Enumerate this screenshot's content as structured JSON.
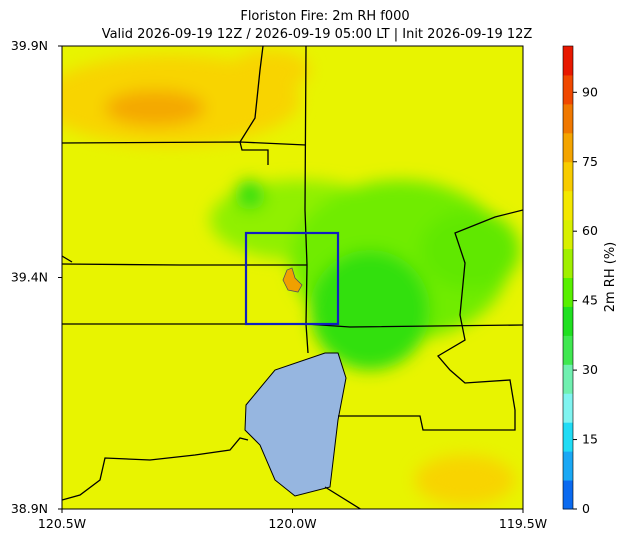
{
  "title": "Floriston Fire: 2m RH f000",
  "subtitle": "Valid 2026-09-19 12Z / 2026-09-19 05:00 LT | Init 2026-09-19 12Z",
  "map": {
    "xlim": [
      -120.5,
      -119.5
    ],
    "ylim": [
      38.9,
      39.9
    ],
    "xticks": [
      {
        "value": -120.5,
        "label": "120.5W"
      },
      {
        "value": -120.0,
        "label": "120.0W"
      },
      {
        "value": -119.5,
        "label": "119.5W"
      }
    ],
    "yticks": [
      {
        "value": 38.9,
        "label": "38.9N"
      },
      {
        "value": 39.4,
        "label": "39.4N"
      },
      {
        "value": 39.9,
        "label": "39.9N"
      }
    ]
  },
  "colorbar": {
    "label": "2m RH (%)",
    "lim": [
      0,
      100
    ],
    "ticks": [
      0,
      15,
      30,
      45,
      60,
      75,
      90
    ],
    "colors": [
      "#0a6af0",
      "#1aa8f5",
      "#20dcf5",
      "#80f4f0",
      "#70f0b0",
      "#40e850",
      "#20e020",
      "#58f000",
      "#a0f000",
      "#d8f000",
      "#f4e800",
      "#f8cc00",
      "#f4a400",
      "#f07800",
      "#f04800",
      "#e81800"
    ]
  }
}
